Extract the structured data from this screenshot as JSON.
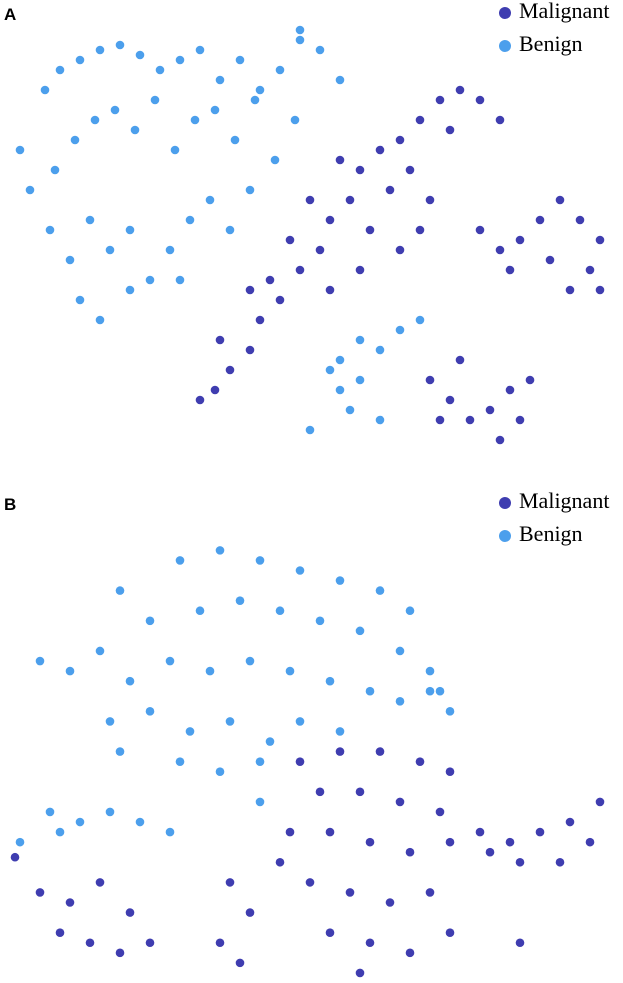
{
  "chart_data": [
    {
      "type": "scatter",
      "title": "A",
      "xlim": [
        0,
        623
      ],
      "ylim": [
        470,
        0
      ],
      "legend": "upper right",
      "series": [
        {
          "name": "Malignant",
          "color": "#3f3db0",
          "x": [
            200,
            215,
            230,
            250,
            220,
            260,
            280,
            270,
            250,
            300,
            320,
            290,
            330,
            350,
            310,
            360,
            380,
            340,
            400,
            420,
            440,
            460,
            480,
            500,
            450,
            410,
            390,
            430,
            370,
            400,
            420,
            330,
            360,
            480,
            500,
            520,
            540,
            560,
            580,
            600,
            590,
            570,
            550,
            510,
            600,
            430,
            450,
            470,
            490,
            510,
            530,
            520,
            460,
            440,
            500
          ],
          "values": [
            400,
            390,
            370,
            350,
            340,
            320,
            300,
            280,
            290,
            270,
            250,
            240,
            220,
            200,
            200,
            170,
            150,
            160,
            140,
            120,
            100,
            90,
            100,
            120,
            130,
            170,
            190,
            200,
            230,
            250,
            230,
            290,
            270,
            230,
            250,
            240,
            220,
            200,
            220,
            240,
            270,
            290,
            260,
            270,
            290,
            380,
            400,
            420,
            410,
            390,
            380,
            420,
            360,
            420,
            440
          ]
        },
        {
          "name": "Benign",
          "color": "#4c9fec",
          "x": [
            20,
            45,
            60,
            80,
            100,
            120,
            140,
            160,
            180,
            200,
            220,
            240,
            260,
            280,
            300,
            320,
            340,
            30,
            55,
            75,
            95,
            115,
            135,
            155,
            175,
            195,
            215,
            235,
            255,
            275,
            295,
            50,
            70,
            90,
            110,
            130,
            150,
            170,
            190,
            210,
            230,
            250,
            80,
            100,
            130,
            180,
            300,
            340,
            360,
            380,
            400,
            420,
            340,
            360,
            310,
            350,
            380,
            330
          ],
          "values": [
            150,
            90,
            70,
            60,
            50,
            45,
            55,
            70,
            60,
            50,
            80,
            60,
            90,
            70,
            40,
            50,
            80,
            190,
            170,
            140,
            120,
            110,
            130,
            100,
            150,
            120,
            110,
            140,
            100,
            160,
            120,
            230,
            260,
            220,
            250,
            230,
            280,
            250,
            220,
            200,
            230,
            190,
            300,
            320,
            290,
            280,
            30,
            360,
            340,
            350,
            330,
            320,
            390,
            380,
            430,
            410,
            420,
            370
          ]
        }
      ]
    },
    {
      "type": "scatter",
      "title": "B",
      "xlim": [
        0,
        623
      ],
      "ylim": [
        490,
        0
      ],
      "legend": "upper right",
      "series": [
        {
          "name": "Malignant",
          "color": "#3f3db0",
          "x": [
            300,
            340,
            380,
            420,
            450,
            320,
            360,
            400,
            440,
            290,
            330,
            370,
            410,
            450,
            310,
            350,
            390,
            430,
            330,
            370,
            410,
            450,
            360,
            480,
            510,
            540,
            570,
            600,
            590,
            560,
            520,
            490,
            40,
            70,
            100,
            130,
            150,
            60,
            90,
            120,
            230,
            250,
            220,
            240,
            280,
            520,
            15
          ],
          "values": [
            270,
            260,
            260,
            270,
            280,
            300,
            300,
            310,
            320,
            340,
            340,
            350,
            360,
            350,
            390,
            400,
            410,
            400,
            440,
            450,
            460,
            440,
            480,
            340,
            350,
            340,
            330,
            310,
            350,
            370,
            370,
            360,
            400,
            410,
            390,
            420,
            450,
            440,
            450,
            460,
            390,
            420,
            450,
            470,
            370,
            450,
            365
          ]
        },
        {
          "name": "Benign",
          "color": "#4c9fec",
          "x": [
            120,
            180,
            220,
            260,
            300,
            340,
            380,
            410,
            150,
            200,
            240,
            280,
            320,
            360,
            400,
            430,
            440,
            40,
            70,
            100,
            130,
            170,
            210,
            250,
            290,
            330,
            370,
            400,
            110,
            150,
            190,
            230,
            270,
            300,
            340,
            120,
            180,
            220,
            260,
            50,
            80,
            110,
            140,
            170,
            60,
            20,
            260,
            450,
            430
          ],
          "values": [
            100,
            70,
            60,
            70,
            80,
            90,
            100,
            120,
            130,
            120,
            110,
            120,
            130,
            140,
            160,
            180,
            200,
            170,
            180,
            160,
            190,
            170,
            180,
            170,
            180,
            190,
            200,
            210,
            230,
            220,
            240,
            230,
            250,
            230,
            240,
            260,
            270,
            280,
            270,
            320,
            330,
            320,
            330,
            340,
            340,
            350,
            310,
            220,
            200
          ]
        }
      ]
    }
  ]
}
